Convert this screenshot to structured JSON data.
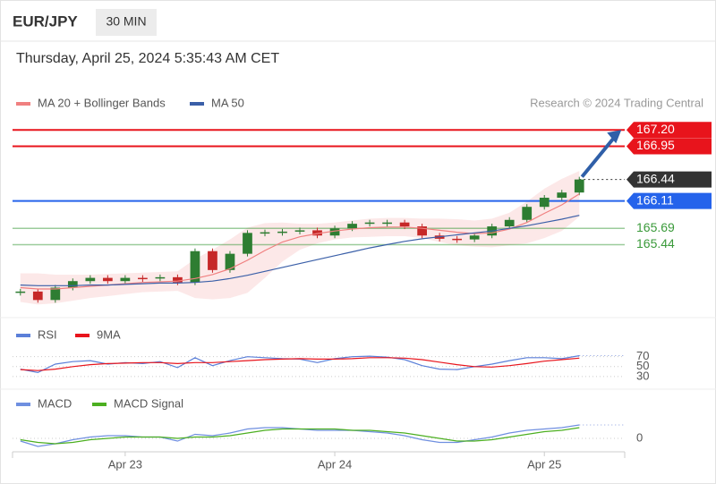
{
  "header": {
    "symbol": "EUR/JPY",
    "interval": "30 MIN",
    "timestamp": "Thursday, April 25, 2024 5:35:43 AM CET"
  },
  "chart_data": [
    {
      "type": "candlestick",
      "annotation": "Research © 2024 Trading Central",
      "x": [
        -12,
        -10,
        -8,
        -6,
        -4,
        -2,
        0,
        2,
        4,
        6,
        8,
        10,
        12,
        14,
        16,
        18,
        20,
        22,
        24,
        26,
        28,
        30,
        32,
        34,
        36,
        38,
        40,
        42,
        44,
        46,
        48,
        50,
        52
      ],
      "close": [
        164.72,
        164.59,
        164.78,
        164.88,
        164.93,
        164.88,
        164.93,
        164.92,
        164.94,
        164.86,
        165.34,
        165.05,
        165.3,
        165.62,
        165.63,
        165.64,
        165.66,
        165.58,
        165.69,
        165.76,
        165.78,
        165.78,
        165.72,
        165.58,
        165.53,
        165.52,
        165.58,
        165.72,
        165.82,
        166.02,
        166.16,
        166.24,
        166.44
      ],
      "up_color": "#2e7d32",
      "down_color": "#c62828",
      "series": [
        {
          "name": "MA 20 + Bollinger Bands",
          "color": "#f08080",
          "values": [
            164.78,
            164.76,
            164.76,
            164.78,
            164.8,
            164.82,
            164.84,
            164.86,
            164.87,
            164.88,
            164.92,
            164.98,
            165.07,
            165.2,
            165.35,
            165.48,
            165.56,
            165.61,
            165.65,
            165.68,
            165.7,
            165.71,
            165.71,
            165.69,
            165.66,
            165.63,
            165.61,
            165.62,
            165.68,
            165.78,
            165.92,
            166.05,
            166.22
          ],
          "upper": [
            165.0,
            165.0,
            164.98,
            164.98,
            164.98,
            164.99,
            165.0,
            165.01,
            165.02,
            165.03,
            165.22,
            165.36,
            165.52,
            165.7,
            165.77,
            165.78,
            165.76,
            165.76,
            165.78,
            165.81,
            165.84,
            165.85,
            165.85,
            165.84,
            165.84,
            165.83,
            165.81,
            165.84,
            165.93,
            166.1,
            166.3,
            166.45,
            166.57
          ],
          "lower": [
            164.56,
            164.52,
            164.54,
            164.58,
            164.62,
            164.65,
            164.68,
            164.71,
            164.72,
            164.73,
            164.62,
            164.6,
            164.62,
            164.7,
            164.93,
            165.18,
            165.36,
            165.46,
            165.52,
            165.55,
            165.56,
            165.57,
            165.57,
            165.54,
            165.48,
            165.43,
            165.41,
            165.4,
            165.43,
            165.46,
            165.54,
            165.65,
            165.87
          ]
        },
        {
          "name": "MA 50",
          "color": "#3a5fa8",
          "values": [
            164.82,
            164.81,
            164.81,
            164.81,
            164.82,
            164.82,
            164.83,
            164.84,
            164.85,
            164.85,
            164.86,
            164.88,
            164.92,
            164.97,
            165.03,
            165.09,
            165.15,
            165.21,
            165.27,
            165.33,
            165.39,
            165.44,
            165.49,
            165.53,
            165.56,
            165.59,
            165.62,
            165.65,
            165.69,
            165.73,
            165.78,
            165.83,
            165.89
          ]
        }
      ],
      "levels": [
        {
          "value": 167.2,
          "label": "167.20",
          "color": "#e8141c",
          "style": "box",
          "line": "solid"
        },
        {
          "value": 166.95,
          "label": "166.95",
          "color": "#e8141c",
          "style": "box",
          "line": "solid"
        },
        {
          "value": 166.44,
          "label": "166.44",
          "color": "#333333",
          "style": "box",
          "line": "dotted"
        },
        {
          "value": 166.11,
          "label": "166.11",
          "color": "#2563eb",
          "style": "box",
          "line": "solid"
        },
        {
          "value": 165.69,
          "label": "165.69",
          "color": "#3a9a3a",
          "style": "text",
          "line": "solid"
        },
        {
          "value": 165.44,
          "label": "165.44",
          "color": "#3a9a3a",
          "style": "text",
          "line": "solid"
        }
      ],
      "ylim": [
        164.32,
        167.41
      ],
      "xlim": [
        -12.9,
        57.2
      ]
    },
    {
      "type": "line",
      "series": [
        {
          "name": "RSI",
          "color": "#5b7fd8",
          "values": [
            45,
            38,
            55,
            60,
            62,
            55,
            58,
            56,
            60,
            48,
            68,
            52,
            62,
            70,
            68,
            66,
            65,
            58,
            66,
            70,
            71,
            69,
            64,
            52,
            45,
            44,
            50,
            55,
            62,
            68,
            68,
            66,
            72
          ]
        },
        {
          "name": "9MA",
          "color": "#e8141c",
          "values": [
            44,
            42,
            45,
            50,
            54,
            56,
            57,
            58,
            58,
            56,
            58,
            58,
            60,
            62,
            64,
            65,
            66,
            65,
            65,
            66,
            68,
            68,
            67,
            64,
            59,
            54,
            50,
            49,
            52,
            56,
            61,
            64,
            67
          ]
        }
      ],
      "ylim": [
        10,
        100
      ],
      "yticks": [
        70,
        50,
        30
      ]
    },
    {
      "type": "line",
      "series": [
        {
          "name": "MACD",
          "color": "#6f8fe0",
          "values": [
            -0.02,
            -0.06,
            -0.04,
            -0.01,
            0.01,
            0.02,
            0.02,
            0.01,
            0.01,
            -0.02,
            0.03,
            0.02,
            0.04,
            0.07,
            0.08,
            0.08,
            0.07,
            0.06,
            0.06,
            0.06,
            0.05,
            0.04,
            0.02,
            -0.01,
            -0.03,
            -0.03,
            -0.01,
            0.01,
            0.04,
            0.06,
            0.07,
            0.08,
            0.1
          ]
        },
        {
          "name": "MACD Signal",
          "color": "#4caf20",
          "values": [
            -0.01,
            -0.03,
            -0.04,
            -0.03,
            -0.01,
            0.0,
            0.01,
            0.01,
            0.01,
            0.0,
            0.01,
            0.01,
            0.02,
            0.04,
            0.06,
            0.07,
            0.07,
            0.07,
            0.07,
            0.06,
            0.06,
            0.05,
            0.04,
            0.02,
            0.0,
            -0.02,
            -0.02,
            -0.01,
            0.01,
            0.03,
            0.05,
            0.06,
            0.08
          ]
        }
      ],
      "ylim": [
        -0.1,
        0.2
      ],
      "yticks": [
        0
      ],
      "xticks": [
        {
          "value": 0,
          "label": "Apr 23"
        },
        {
          "value": 24,
          "label": "Apr 24"
        },
        {
          "value": 48,
          "label": "Apr 25"
        }
      ]
    }
  ]
}
